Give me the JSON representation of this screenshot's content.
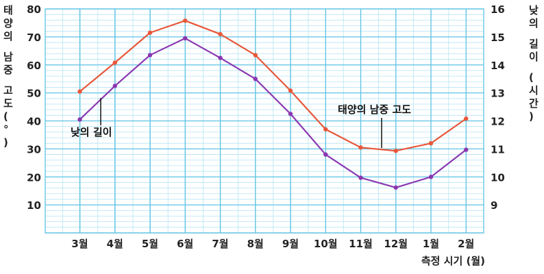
{
  "chart_data": {
    "type": "line",
    "categories": [
      "3월",
      "4월",
      "5월",
      "6월",
      "7월",
      "8월",
      "9월",
      "10월",
      "11월",
      "12월",
      "1월",
      "2월"
    ],
    "xlabel": "측정 시기 (월)",
    "ylabel_left": "태양의 남중 고도(°)",
    "ylabel_right": "낮의 길이 (시간)",
    "ylim_left": [
      0,
      80
    ],
    "yticks_left": [
      10,
      20,
      30,
      40,
      50,
      60,
      70,
      80
    ],
    "ylim_right": [
      8,
      16
    ],
    "yticks_right": [
      9,
      10,
      11,
      12,
      13,
      14,
      15,
      16
    ],
    "grid": true,
    "series": [
      {
        "name": "태양의 남중 고도",
        "axis": "left",
        "color": "#e8573a",
        "values": [
          50.5,
          60.8,
          71.5,
          75.8,
          71.0,
          63.5,
          50.8,
          37.0,
          30.5,
          29.3,
          32.0,
          40.8
        ]
      },
      {
        "name": "낮의 길이",
        "axis": "right",
        "color": "#8a37b0",
        "values": [
          12.05,
          13.25,
          14.35,
          14.95,
          14.25,
          13.5,
          12.25,
          10.8,
          9.97,
          9.62,
          10.0,
          10.97
        ]
      }
    ],
    "annotations": [
      {
        "text": "낮의 길이",
        "series": "낮의 길이"
      },
      {
        "text": "태양의 남중 고도",
        "series": "태양의 남중 고도"
      }
    ]
  },
  "colors": {
    "grid_minor": "#b3e4f3",
    "grid_major": "#5fc3e4",
    "text": "#222222"
  }
}
